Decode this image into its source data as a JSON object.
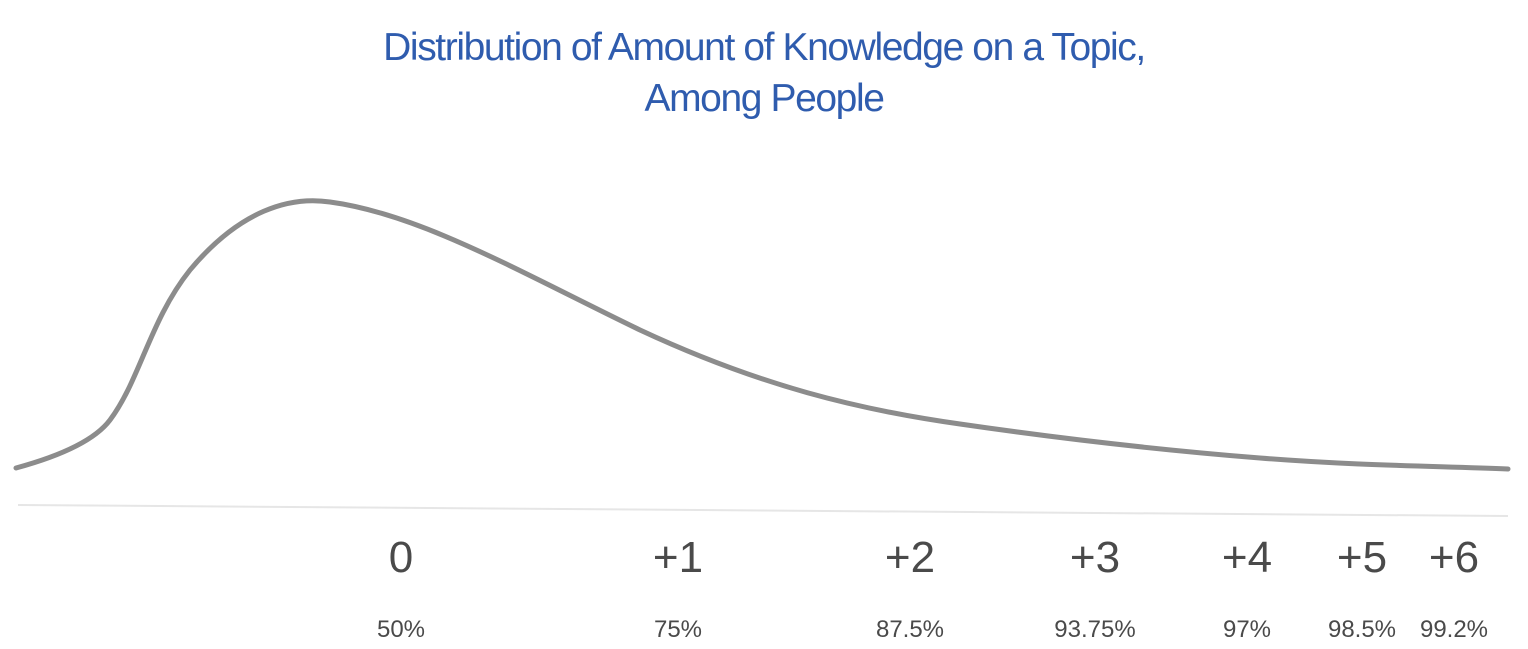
{
  "chart_data": {
    "type": "line",
    "title_lines": [
      "Distribution of Amount of Knowledge on a Topic,",
      "Among People"
    ],
    "xlabel": "",
    "ylabel": "",
    "grid": false,
    "legend": "none",
    "curve_shape": "right-skewed",
    "line_color": "#8c8c8c",
    "title_color": "#2f5cae",
    "axis_line_color": "#e6e6e6",
    "tick_label_color": "#4a4a4a",
    "x_ticks": [
      {
        "label": "0",
        "percentile": "50%"
      },
      {
        "label": "+1",
        "percentile": "75%"
      },
      {
        "label": "+2",
        "percentile": "87.5%"
      },
      {
        "label": "+3",
        "percentile": "93.75%"
      },
      {
        "label": "+4",
        "percentile": "97%"
      },
      {
        "label": "+5",
        "percentile": "98.5%"
      },
      {
        "label": "+6",
        "percentile": "99.2%"
      }
    ]
  }
}
